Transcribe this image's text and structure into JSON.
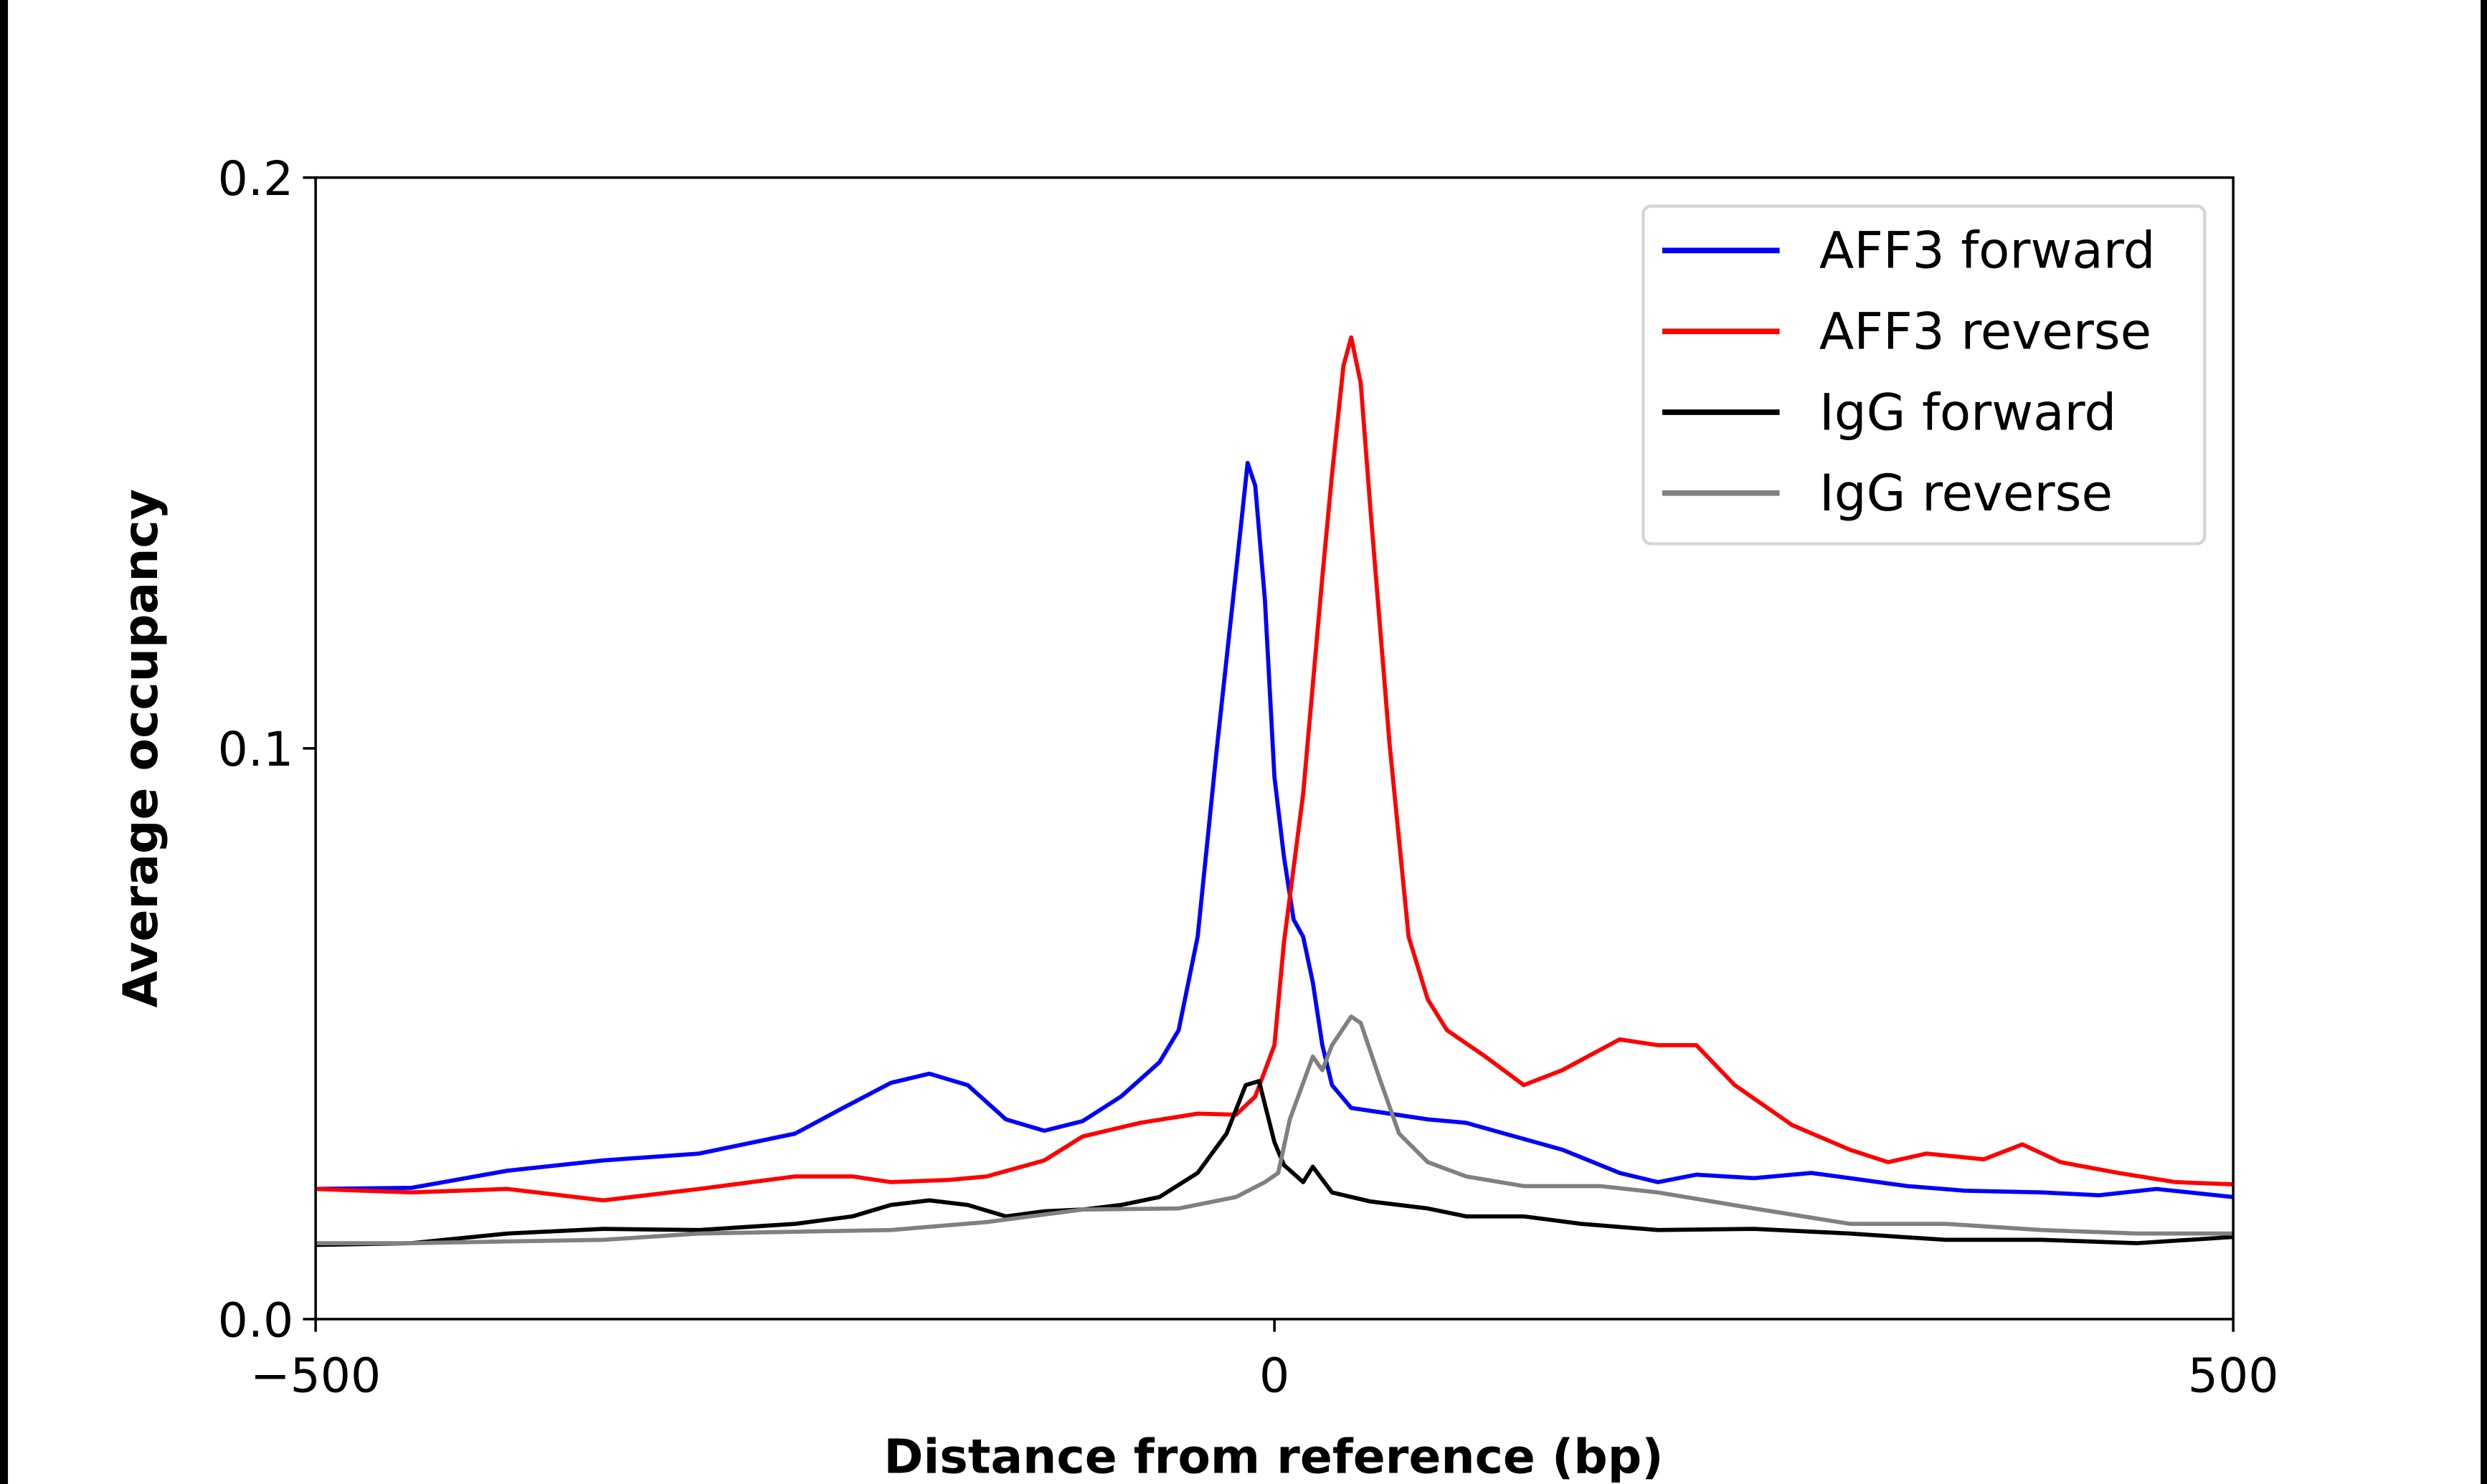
{
  "chart_data": {
    "type": "line",
    "title": "",
    "xlabel": "Distance from reference (bp)",
    "ylabel": "Average occupancy",
    "xlim": [
      -500,
      500
    ],
    "ylim": [
      0.0,
      0.2
    ],
    "xticks": [
      -500,
      0,
      500
    ],
    "xtick_labels": [
      "−500",
      "0",
      "500"
    ],
    "yticks": [
      0.0,
      0.1,
      0.2
    ],
    "ytick_labels": [
      "0.0",
      "0.1",
      "0.2"
    ],
    "grid": false,
    "legend_position": "top-right",
    "series": [
      {
        "name": "AFF3 forward",
        "color": "#0000ff",
        "x": [
          -500,
          -450,
          -400,
          -350,
          -300,
          -250,
          -225,
          -200,
          -180,
          -160,
          -140,
          -120,
          -100,
          -80,
          -60,
          -50,
          -40,
          -30,
          -20,
          -14,
          -10,
          -5,
          0,
          5,
          10,
          15,
          20,
          25,
          30,
          40,
          60,
          80,
          100,
          120,
          150,
          180,
          200,
          220,
          250,
          280,
          300,
          330,
          360,
          400,
          430,
          460,
          500
        ],
        "y": [
          0.0228,
          0.023,
          0.026,
          0.0278,
          0.029,
          0.0325,
          0.037,
          0.0414,
          0.043,
          0.041,
          0.035,
          0.033,
          0.0347,
          0.039,
          0.045,
          0.0506,
          0.067,
          0.1,
          0.131,
          0.15,
          0.146,
          0.126,
          0.095,
          0.081,
          0.07,
          0.067,
          0.059,
          0.048,
          0.041,
          0.037,
          0.036,
          0.035,
          0.0344,
          0.0325,
          0.0297,
          0.0256,
          0.024,
          0.0253,
          0.0247,
          0.0256,
          0.0247,
          0.0233,
          0.0225,
          0.0222,
          0.0217,
          0.0228,
          0.0214
        ]
      },
      {
        "name": "AFF3 reverse",
        "color": "#ff0000",
        "x": [
          -500,
          -450,
          -400,
          -350,
          -300,
          -250,
          -220,
          -200,
          -170,
          -150,
          -120,
          -100,
          -70,
          -40,
          -20,
          -10,
          0,
          5,
          15,
          25,
          30,
          36,
          40,
          45,
          50,
          60,
          70,
          80,
          90,
          110,
          130,
          150,
          180,
          200,
          220,
          240,
          270,
          300,
          320,
          340,
          370,
          390,
          410,
          440,
          470,
          500
        ],
        "y": [
          0.0228,
          0.0222,
          0.0228,
          0.0208,
          0.0228,
          0.025,
          0.025,
          0.024,
          0.0244,
          0.025,
          0.0278,
          0.032,
          0.0344,
          0.036,
          0.0358,
          0.039,
          0.048,
          0.066,
          0.092,
          0.13,
          0.148,
          0.167,
          0.172,
          0.164,
          0.142,
          0.101,
          0.067,
          0.056,
          0.0506,
          0.046,
          0.041,
          0.0436,
          0.049,
          0.048,
          0.048,
          0.041,
          0.034,
          0.0297,
          0.0275,
          0.029,
          0.028,
          0.0306,
          0.0275,
          0.0256,
          0.024,
          0.0236
        ]
      },
      {
        "name": "IgG forward",
        "color": "#000000",
        "x": [
          -500,
          -450,
          -400,
          -350,
          -300,
          -250,
          -220,
          -200,
          -180,
          -160,
          -140,
          -120,
          -100,
          -80,
          -60,
          -40,
          -25,
          -15,
          -8,
          0,
          5,
          15,
          20,
          30,
          50,
          80,
          100,
          130,
          160,
          200,
          250,
          300,
          350,
          400,
          450,
          500
        ],
        "y": [
          0.013,
          0.0133,
          0.015,
          0.0158,
          0.0156,
          0.0167,
          0.018,
          0.02,
          0.0208,
          0.02,
          0.018,
          0.0189,
          0.0192,
          0.02,
          0.0214,
          0.0256,
          0.0325,
          0.041,
          0.0417,
          0.031,
          0.027,
          0.024,
          0.0267,
          0.0222,
          0.0206,
          0.0194,
          0.018,
          0.018,
          0.0167,
          0.0156,
          0.0158,
          0.015,
          0.0139,
          0.0139,
          0.0133,
          0.0144
        ]
      },
      {
        "name": "IgG reverse",
        "color": "#808080",
        "x": [
          -500,
          -450,
          -400,
          -350,
          -300,
          -250,
          -200,
          -150,
          -100,
          -50,
          -20,
          -5,
          2,
          8,
          20,
          25,
          30,
          40,
          45,
          55,
          65,
          80,
          100,
          130,
          170,
          200,
          250,
          300,
          350,
          400,
          450,
          500
        ],
        "y": [
          0.0133,
          0.0133,
          0.0136,
          0.0139,
          0.015,
          0.0153,
          0.0156,
          0.017,
          0.0192,
          0.0194,
          0.0214,
          0.024,
          0.0256,
          0.035,
          0.046,
          0.0436,
          0.048,
          0.053,
          0.0519,
          0.042,
          0.0325,
          0.0275,
          0.025,
          0.0233,
          0.0233,
          0.0222,
          0.0194,
          0.0167,
          0.0167,
          0.0156,
          0.015,
          0.015
        ]
      }
    ]
  }
}
